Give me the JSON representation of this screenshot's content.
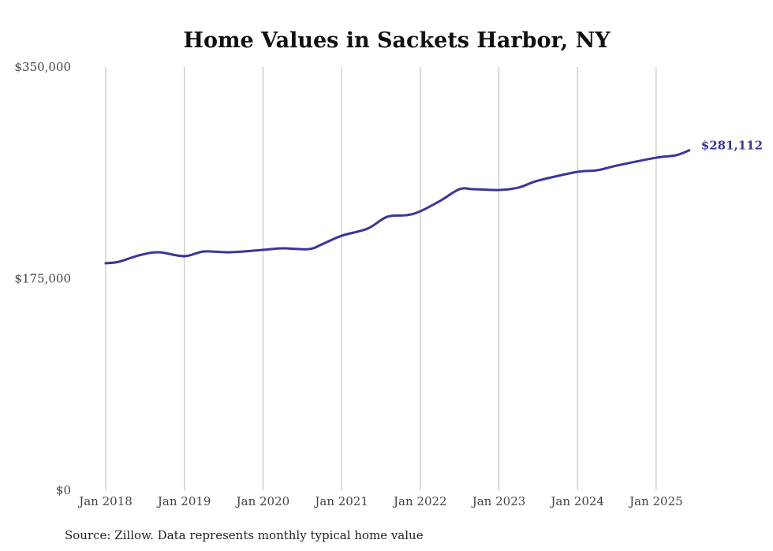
{
  "chart_data": {
    "type": "line",
    "title": "Home Values in Sackets Harbor, NY",
    "xlabel": "",
    "ylabel": "",
    "ylim": [
      0,
      350000
    ],
    "xlim": [
      2018,
      2025.45
    ],
    "y_ticks": [
      {
        "value": 0,
        "label": "$0"
      },
      {
        "value": 175000,
        "label": "$175,000"
      },
      {
        "value": 350000,
        "label": "$350,000"
      }
    ],
    "x_ticks": [
      {
        "value": 2018,
        "label": "Jan 2018"
      },
      {
        "value": 2019,
        "label": "Jan 2019"
      },
      {
        "value": 2020,
        "label": "Jan 2020"
      },
      {
        "value": 2021,
        "label": "Jan 2021"
      },
      {
        "value": 2022,
        "label": "Jan 2022"
      },
      {
        "value": 2023,
        "label": "Jan 2023"
      },
      {
        "value": 2024,
        "label": "Jan 2024"
      },
      {
        "value": 2025,
        "label": "Jan 2025"
      }
    ],
    "grid": "vertical",
    "series": [
      {
        "name": "Typical home value",
        "color": "#3b3597",
        "points": [
          [
            2018.0,
            187700
          ],
          [
            2018.17,
            189000
          ],
          [
            2018.42,
            194200
          ],
          [
            2018.67,
            196800
          ],
          [
            2019.0,
            193600
          ],
          [
            2019.25,
            197500
          ],
          [
            2019.58,
            196800
          ],
          [
            2020.0,
            198800
          ],
          [
            2020.25,
            200100
          ],
          [
            2020.58,
            199400
          ],
          [
            2020.75,
            203400
          ],
          [
            2021.0,
            210500
          ],
          [
            2021.33,
            216400
          ],
          [
            2021.58,
            226200
          ],
          [
            2021.83,
            227500
          ],
          [
            2022.0,
            230700
          ],
          [
            2022.25,
            239200
          ],
          [
            2022.5,
            249000
          ],
          [
            2022.67,
            249000
          ],
          [
            2023.0,
            248300
          ],
          [
            2023.25,
            250300
          ],
          [
            2023.5,
            256100
          ],
          [
            2024.0,
            263300
          ],
          [
            2024.25,
            264600
          ],
          [
            2024.5,
            268500
          ],
          [
            2025.0,
            275000
          ],
          [
            2025.25,
            277000
          ],
          [
            2025.42,
            281112
          ]
        ]
      }
    ],
    "annotations": [
      {
        "text": "$281,112",
        "x": 2025.42,
        "y": 281112
      }
    ]
  },
  "source": "Source: Zillow. Data represents monthly typical home value"
}
